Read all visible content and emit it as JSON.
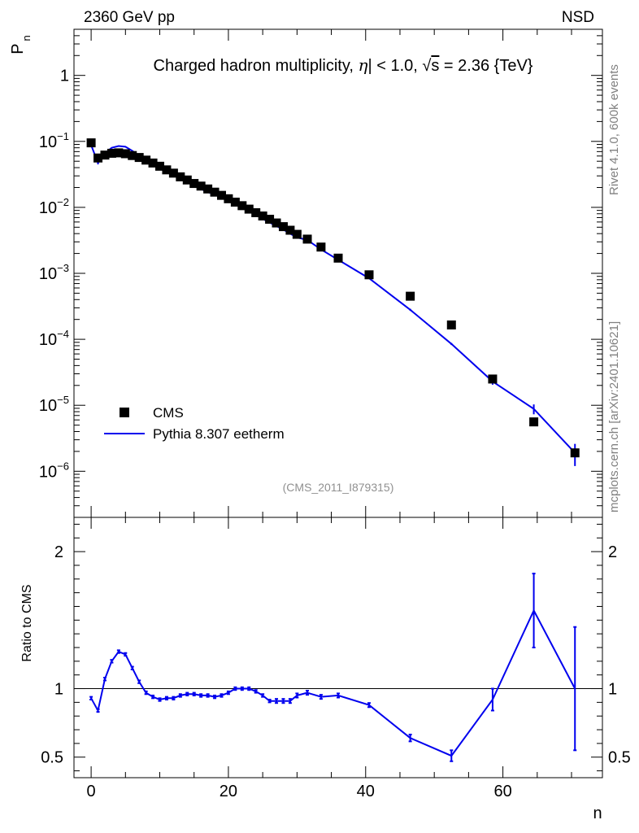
{
  "header": {
    "left_label": "2360 GeV pp",
    "right_label": "NSD"
  },
  "side_labels": {
    "rivet": "Rivet 4.1.0,  600k events",
    "mcplots": "mcplots.cern.ch [arXiv:2401.10621]"
  },
  "chart_data": [
    {
      "type": "scatter",
      "role": "main",
      "title_parts": {
        "text_a": "Charged hadron multiplicity, ",
        "eta": "η",
        "text_b": "| < 1.0, ",
        "sqrt_sym": "√",
        "s": "s",
        "text_c": " = 2.36 {TeV}"
      },
      "ylabel_main": "P",
      "ylabel_sub": "n",
      "yscale": "log",
      "ylim": [
        2e-07,
        5
      ],
      "xlim": [
        -2.5,
        74.5
      ],
      "xticks": [
        0,
        20,
        40,
        60
      ],
      "ytick_labels": [
        {
          "value": 1,
          "base": "1",
          "exp": ""
        },
        {
          "value": 0.1,
          "base": "10",
          "exp": "−1"
        },
        {
          "value": 0.01,
          "base": "10",
          "exp": "−2"
        },
        {
          "value": 0.001,
          "base": "10",
          "exp": "−3"
        },
        {
          "value": 0.0001,
          "base": "10",
          "exp": "−4"
        },
        {
          "value": 1e-05,
          "base": "10",
          "exp": "−5"
        },
        {
          "value": 1e-06,
          "base": "10",
          "exp": "−6"
        }
      ],
      "legend": {
        "position": "bottom-left",
        "entries": [
          "CMS",
          "Pythia 8.307 eetherm"
        ]
      },
      "annotation": "(CMS_2011_I879315)",
      "colors": {
        "data": "#000000",
        "mc": "#0000ee"
      },
      "series": [
        {
          "name": "CMS",
          "x": [
            0,
            1,
            2,
            3,
            4,
            5,
            6,
            7,
            8,
            9,
            10,
            11,
            12,
            13,
            14,
            15,
            16,
            17,
            18,
            19,
            20,
            21,
            22,
            23,
            24,
            25,
            26,
            27,
            28,
            29,
            30,
            31.5,
            33.5,
            36,
            40.5,
            46.5,
            52.5,
            58.5,
            64.5,
            70.5
          ],
          "y": [
            0.095,
            0.056,
            0.062,
            0.066,
            0.067,
            0.065,
            0.061,
            0.057,
            0.052,
            0.047,
            0.042,
            0.037,
            0.033,
            0.029,
            0.026,
            0.023,
            0.021,
            0.019,
            0.017,
            0.0152,
            0.0135,
            0.012,
            0.0106,
            0.0094,
            0.0083,
            0.0074,
            0.0066,
            0.0058,
            0.0051,
            0.0045,
            0.0039,
            0.0033,
            0.0025,
            0.0017,
            0.00095,
            0.00045,
            0.000165,
            2.5e-05,
            5.6e-06,
            1.9e-06
          ]
        },
        {
          "name": "Pythia 8.307 eetherm",
          "x": [
            0,
            1,
            2,
            3,
            4,
            5,
            6,
            7,
            8,
            9,
            10,
            11,
            12,
            13,
            14,
            15,
            16,
            17,
            18,
            19,
            20,
            21,
            22,
            23,
            24,
            25,
            26,
            27,
            28,
            29,
            30,
            31.5,
            33.5,
            36,
            40.5,
            46.5,
            52.5,
            58.5,
            64.5,
            70.5
          ],
          "y": [
            0.088,
            0.047,
            0.066,
            0.08,
            0.085,
            0.083,
            0.072,
            0.06,
            0.05,
            0.044,
            0.039,
            0.034,
            0.031,
            0.027,
            0.024,
            0.022,
            0.019,
            0.017,
            0.0157,
            0.0141,
            0.013,
            0.012,
            0.0106,
            0.0093,
            0.0079,
            0.0067,
            0.0059,
            0.0052,
            0.0046,
            0.004,
            0.0035,
            0.0032,
            0.0023,
            0.0016,
            0.00084,
            0.00028,
            8.5e-05,
            2.3e-05,
            8.8e-06,
            1.9e-06
          ],
          "yerr": [
            0,
            0.002,
            0,
            0,
            0,
            0,
            0,
            0,
            0,
            0,
            0,
            0,
            0,
            0,
            0,
            0,
            0,
            0,
            0,
            0,
            0,
            0,
            0,
            0,
            0,
            0,
            0,
            0,
            0,
            0,
            0,
            0,
            0,
            0,
            0,
            1e-05,
            3e-06,
            2.5e-06,
            1.5e-06,
            7e-07
          ]
        }
      ]
    },
    {
      "type": "line",
      "role": "ratio",
      "ylabel": "Ratio to CMS",
      "ylim": [
        0.35,
        2.25
      ],
      "yticks": [
        0.5,
        1,
        2
      ],
      "ytick_labels": [
        "0.5",
        "1",
        "2"
      ],
      "reference_line": 1,
      "xlabel": "n",
      "series": [
        {
          "name": "Pythia 8.307 eetherm / CMS",
          "x": [
            0,
            1,
            2,
            3,
            4,
            5,
            6,
            7,
            8,
            9,
            10,
            11,
            12,
            13,
            14,
            15,
            16,
            17,
            18,
            19,
            20,
            21,
            22,
            23,
            24,
            25,
            26,
            27,
            28,
            29,
            30,
            31.5,
            33.5,
            36,
            40.5,
            46.5,
            52.5,
            58.5,
            64.5,
            70.5
          ],
          "y": [
            0.93,
            0.84,
            1.07,
            1.2,
            1.27,
            1.25,
            1.15,
            1.05,
            0.97,
            0.94,
            0.92,
            0.93,
            0.93,
            0.95,
            0.96,
            0.96,
            0.95,
            0.95,
            0.94,
            0.95,
            0.97,
            1.0,
            1.0,
            1.0,
            0.98,
            0.95,
            0.91,
            0.91,
            0.91,
            0.91,
            0.95,
            0.97,
            0.94,
            0.95,
            0.88,
            0.64,
            0.51,
            0.92,
            1.57,
            1.0
          ],
          "yerr": [
            0.01,
            0.01,
            0.01,
            0.01,
            0.01,
            0.01,
            0.01,
            0.01,
            0.01,
            0.01,
            0.01,
            0.01,
            0.01,
            0.01,
            0.01,
            0.01,
            0.01,
            0.01,
            0.01,
            0.01,
            0.01,
            0.01,
            0.01,
            0.01,
            0.01,
            0.01,
            0.01,
            0.015,
            0.015,
            0.015,
            0.015,
            0.015,
            0.015,
            0.015,
            0.015,
            0.025,
            0.04,
            0.08,
            0.27,
            0.45
          ]
        }
      ]
    }
  ]
}
